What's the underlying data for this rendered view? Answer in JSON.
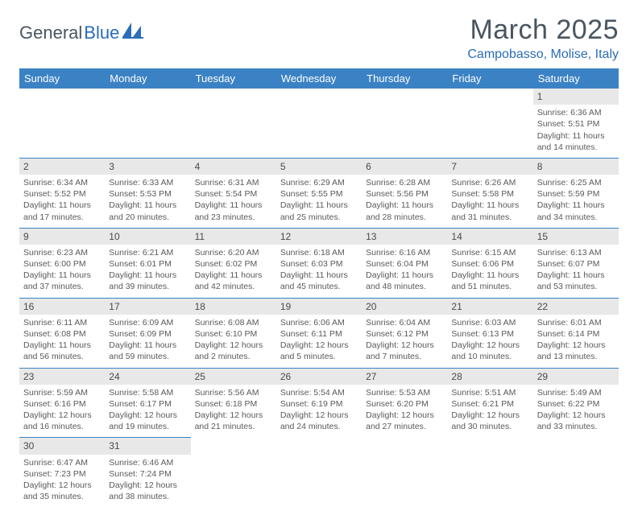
{
  "brand": {
    "part1": "General",
    "part2": "Blue"
  },
  "title": "March 2025",
  "location": "Campobasso, Molise, Italy",
  "colors": {
    "header_bg": "#3b82c4",
    "header_text": "#ffffff",
    "border": "#3b82c4",
    "daynum_bg": "#e8e8e8",
    "text": "#5a5a5a",
    "accent": "#2a6db8"
  },
  "weekdays": [
    "Sunday",
    "Monday",
    "Tuesday",
    "Wednesday",
    "Thursday",
    "Friday",
    "Saturday"
  ],
  "weeks": [
    [
      {
        "empty": true
      },
      {
        "empty": true
      },
      {
        "empty": true
      },
      {
        "empty": true
      },
      {
        "empty": true
      },
      {
        "empty": true
      },
      {
        "day": "1",
        "sunrise": "Sunrise: 6:36 AM",
        "sunset": "Sunset: 5:51 PM",
        "daylight": "Daylight: 11 hours and 14 minutes."
      }
    ],
    [
      {
        "day": "2",
        "sunrise": "Sunrise: 6:34 AM",
        "sunset": "Sunset: 5:52 PM",
        "daylight": "Daylight: 11 hours and 17 minutes."
      },
      {
        "day": "3",
        "sunrise": "Sunrise: 6:33 AM",
        "sunset": "Sunset: 5:53 PM",
        "daylight": "Daylight: 11 hours and 20 minutes."
      },
      {
        "day": "4",
        "sunrise": "Sunrise: 6:31 AM",
        "sunset": "Sunset: 5:54 PM",
        "daylight": "Daylight: 11 hours and 23 minutes."
      },
      {
        "day": "5",
        "sunrise": "Sunrise: 6:29 AM",
        "sunset": "Sunset: 5:55 PM",
        "daylight": "Daylight: 11 hours and 25 minutes."
      },
      {
        "day": "6",
        "sunrise": "Sunrise: 6:28 AM",
        "sunset": "Sunset: 5:56 PM",
        "daylight": "Daylight: 11 hours and 28 minutes."
      },
      {
        "day": "7",
        "sunrise": "Sunrise: 6:26 AM",
        "sunset": "Sunset: 5:58 PM",
        "daylight": "Daylight: 11 hours and 31 minutes."
      },
      {
        "day": "8",
        "sunrise": "Sunrise: 6:25 AM",
        "sunset": "Sunset: 5:59 PM",
        "daylight": "Daylight: 11 hours and 34 minutes."
      }
    ],
    [
      {
        "day": "9",
        "sunrise": "Sunrise: 6:23 AM",
        "sunset": "Sunset: 6:00 PM",
        "daylight": "Daylight: 11 hours and 37 minutes."
      },
      {
        "day": "10",
        "sunrise": "Sunrise: 6:21 AM",
        "sunset": "Sunset: 6:01 PM",
        "daylight": "Daylight: 11 hours and 39 minutes."
      },
      {
        "day": "11",
        "sunrise": "Sunrise: 6:20 AM",
        "sunset": "Sunset: 6:02 PM",
        "daylight": "Daylight: 11 hours and 42 minutes."
      },
      {
        "day": "12",
        "sunrise": "Sunrise: 6:18 AM",
        "sunset": "Sunset: 6:03 PM",
        "daylight": "Daylight: 11 hours and 45 minutes."
      },
      {
        "day": "13",
        "sunrise": "Sunrise: 6:16 AM",
        "sunset": "Sunset: 6:04 PM",
        "daylight": "Daylight: 11 hours and 48 minutes."
      },
      {
        "day": "14",
        "sunrise": "Sunrise: 6:15 AM",
        "sunset": "Sunset: 6:06 PM",
        "daylight": "Daylight: 11 hours and 51 minutes."
      },
      {
        "day": "15",
        "sunrise": "Sunrise: 6:13 AM",
        "sunset": "Sunset: 6:07 PM",
        "daylight": "Daylight: 11 hours and 53 minutes."
      }
    ],
    [
      {
        "day": "16",
        "sunrise": "Sunrise: 6:11 AM",
        "sunset": "Sunset: 6:08 PM",
        "daylight": "Daylight: 11 hours and 56 minutes."
      },
      {
        "day": "17",
        "sunrise": "Sunrise: 6:09 AM",
        "sunset": "Sunset: 6:09 PM",
        "daylight": "Daylight: 11 hours and 59 minutes."
      },
      {
        "day": "18",
        "sunrise": "Sunrise: 6:08 AM",
        "sunset": "Sunset: 6:10 PM",
        "daylight": "Daylight: 12 hours and 2 minutes."
      },
      {
        "day": "19",
        "sunrise": "Sunrise: 6:06 AM",
        "sunset": "Sunset: 6:11 PM",
        "daylight": "Daylight: 12 hours and 5 minutes."
      },
      {
        "day": "20",
        "sunrise": "Sunrise: 6:04 AM",
        "sunset": "Sunset: 6:12 PM",
        "daylight": "Daylight: 12 hours and 7 minutes."
      },
      {
        "day": "21",
        "sunrise": "Sunrise: 6:03 AM",
        "sunset": "Sunset: 6:13 PM",
        "daylight": "Daylight: 12 hours and 10 minutes."
      },
      {
        "day": "22",
        "sunrise": "Sunrise: 6:01 AM",
        "sunset": "Sunset: 6:14 PM",
        "daylight": "Daylight: 12 hours and 13 minutes."
      }
    ],
    [
      {
        "day": "23",
        "sunrise": "Sunrise: 5:59 AM",
        "sunset": "Sunset: 6:16 PM",
        "daylight": "Daylight: 12 hours and 16 minutes."
      },
      {
        "day": "24",
        "sunrise": "Sunrise: 5:58 AM",
        "sunset": "Sunset: 6:17 PM",
        "daylight": "Daylight: 12 hours and 19 minutes."
      },
      {
        "day": "25",
        "sunrise": "Sunrise: 5:56 AM",
        "sunset": "Sunset: 6:18 PM",
        "daylight": "Daylight: 12 hours and 21 minutes."
      },
      {
        "day": "26",
        "sunrise": "Sunrise: 5:54 AM",
        "sunset": "Sunset: 6:19 PM",
        "daylight": "Daylight: 12 hours and 24 minutes."
      },
      {
        "day": "27",
        "sunrise": "Sunrise: 5:53 AM",
        "sunset": "Sunset: 6:20 PM",
        "daylight": "Daylight: 12 hours and 27 minutes."
      },
      {
        "day": "28",
        "sunrise": "Sunrise: 5:51 AM",
        "sunset": "Sunset: 6:21 PM",
        "daylight": "Daylight: 12 hours and 30 minutes."
      },
      {
        "day": "29",
        "sunrise": "Sunrise: 5:49 AM",
        "sunset": "Sunset: 6:22 PM",
        "daylight": "Daylight: 12 hours and 33 minutes."
      }
    ],
    [
      {
        "day": "30",
        "sunrise": "Sunrise: 6:47 AM",
        "sunset": "Sunset: 7:23 PM",
        "daylight": "Daylight: 12 hours and 35 minutes."
      },
      {
        "day": "31",
        "sunrise": "Sunrise: 6:46 AM",
        "sunset": "Sunset: 7:24 PM",
        "daylight": "Daylight: 12 hours and 38 minutes."
      },
      {
        "empty": true
      },
      {
        "empty": true
      },
      {
        "empty": true
      },
      {
        "empty": true
      },
      {
        "empty": true
      }
    ]
  ]
}
